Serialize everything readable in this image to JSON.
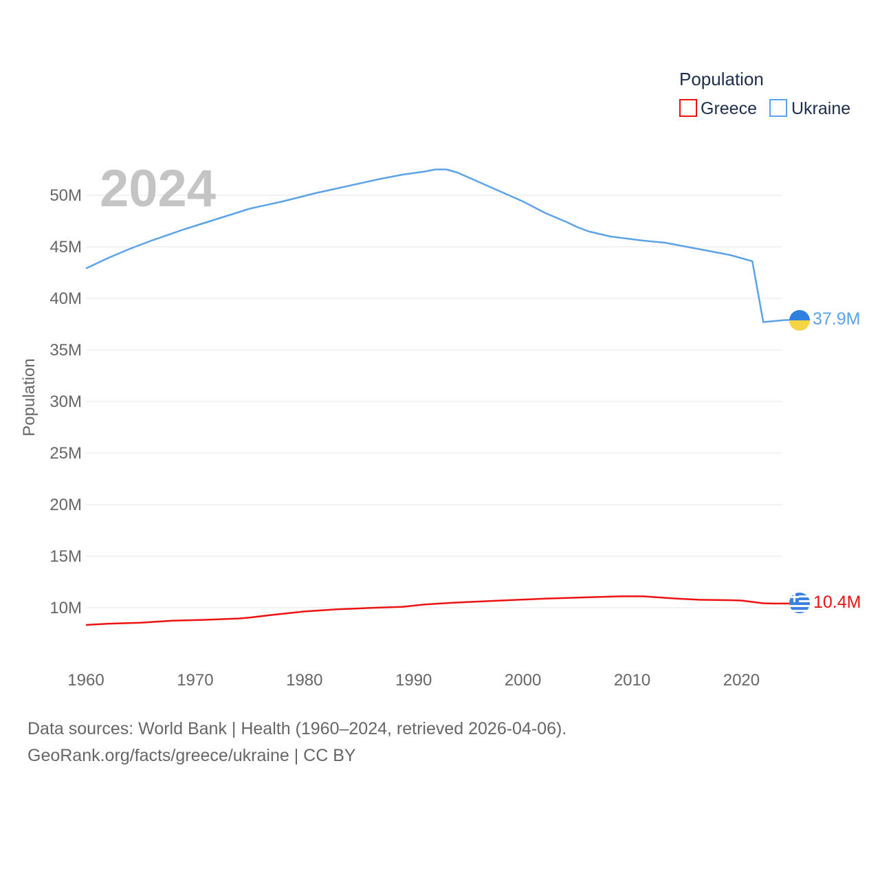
{
  "chart_data": {
    "type": "line",
    "year_label": "2024",
    "ylabel": "Population",
    "legend_title": "Population",
    "x_ticks": [
      "1960",
      "1970",
      "1980",
      "1990",
      "2000",
      "2010",
      "2020"
    ],
    "y_ticks": [
      "10M",
      "15M",
      "20M",
      "25M",
      "30M",
      "35M",
      "40M",
      "45M",
      "50M"
    ],
    "xlim": [
      1960,
      2024
    ],
    "ylim": [
      7,
      53
    ],
    "units": "millions",
    "series": [
      {
        "name": "Greece",
        "color": "#ee1111",
        "end_label": "10.4M",
        "flag_icon": "greece-flag-icon",
        "x": [
          1960,
          1962,
          1965,
          1968,
          1971,
          1974,
          1975,
          1977,
          1980,
          1983,
          1986,
          1989,
          1991,
          1994,
          1998,
          2002,
          2006,
          2009,
          2011,
          2014,
          2016,
          2019,
          2020,
          2021,
          2022,
          2023,
          2024
        ],
        "values": [
          8.33,
          8.45,
          8.55,
          8.75,
          8.83,
          8.96,
          9.05,
          9.3,
          9.64,
          9.85,
          9.98,
          10.09,
          10.32,
          10.51,
          10.7,
          10.88,
          11.02,
          11.11,
          11.11,
          10.89,
          10.78,
          10.73,
          10.7,
          10.57,
          10.43,
          10.41,
          10.41
        ]
      },
      {
        "name": "Ukraine",
        "color": "#5ba3e6",
        "end_label": "37.9M",
        "flag_icon": "ukraine-flag-icon",
        "x": [
          1960,
          1962,
          1964,
          1966,
          1969,
          1972,
          1975,
          1978,
          1981,
          1984,
          1987,
          1989,
          1991,
          1992,
          1993,
          1994,
          1997,
          2000,
          2002,
          2004,
          2005,
          2006,
          2008,
          2011,
          2013,
          2015,
          2017,
          2019,
          2020,
          2021,
          2022,
          2023,
          2024
        ],
        "values": [
          42.9,
          43.9,
          44.8,
          45.6,
          46.7,
          47.7,
          48.7,
          49.4,
          50.2,
          50.9,
          51.6,
          52.0,
          52.3,
          52.5,
          52.5,
          52.2,
          50.8,
          49.4,
          48.3,
          47.4,
          46.9,
          46.5,
          46.0,
          45.6,
          45.4,
          45.0,
          44.6,
          44.2,
          43.9,
          43.6,
          37.7,
          37.8,
          37.9
        ]
      }
    ]
  },
  "source": {
    "line1": "Data sources: World Bank | Health (1960–2024, retrieved 2026-04-06).",
    "line2": "GeoRank.org/facts/greece/ukraine | CC BY"
  }
}
